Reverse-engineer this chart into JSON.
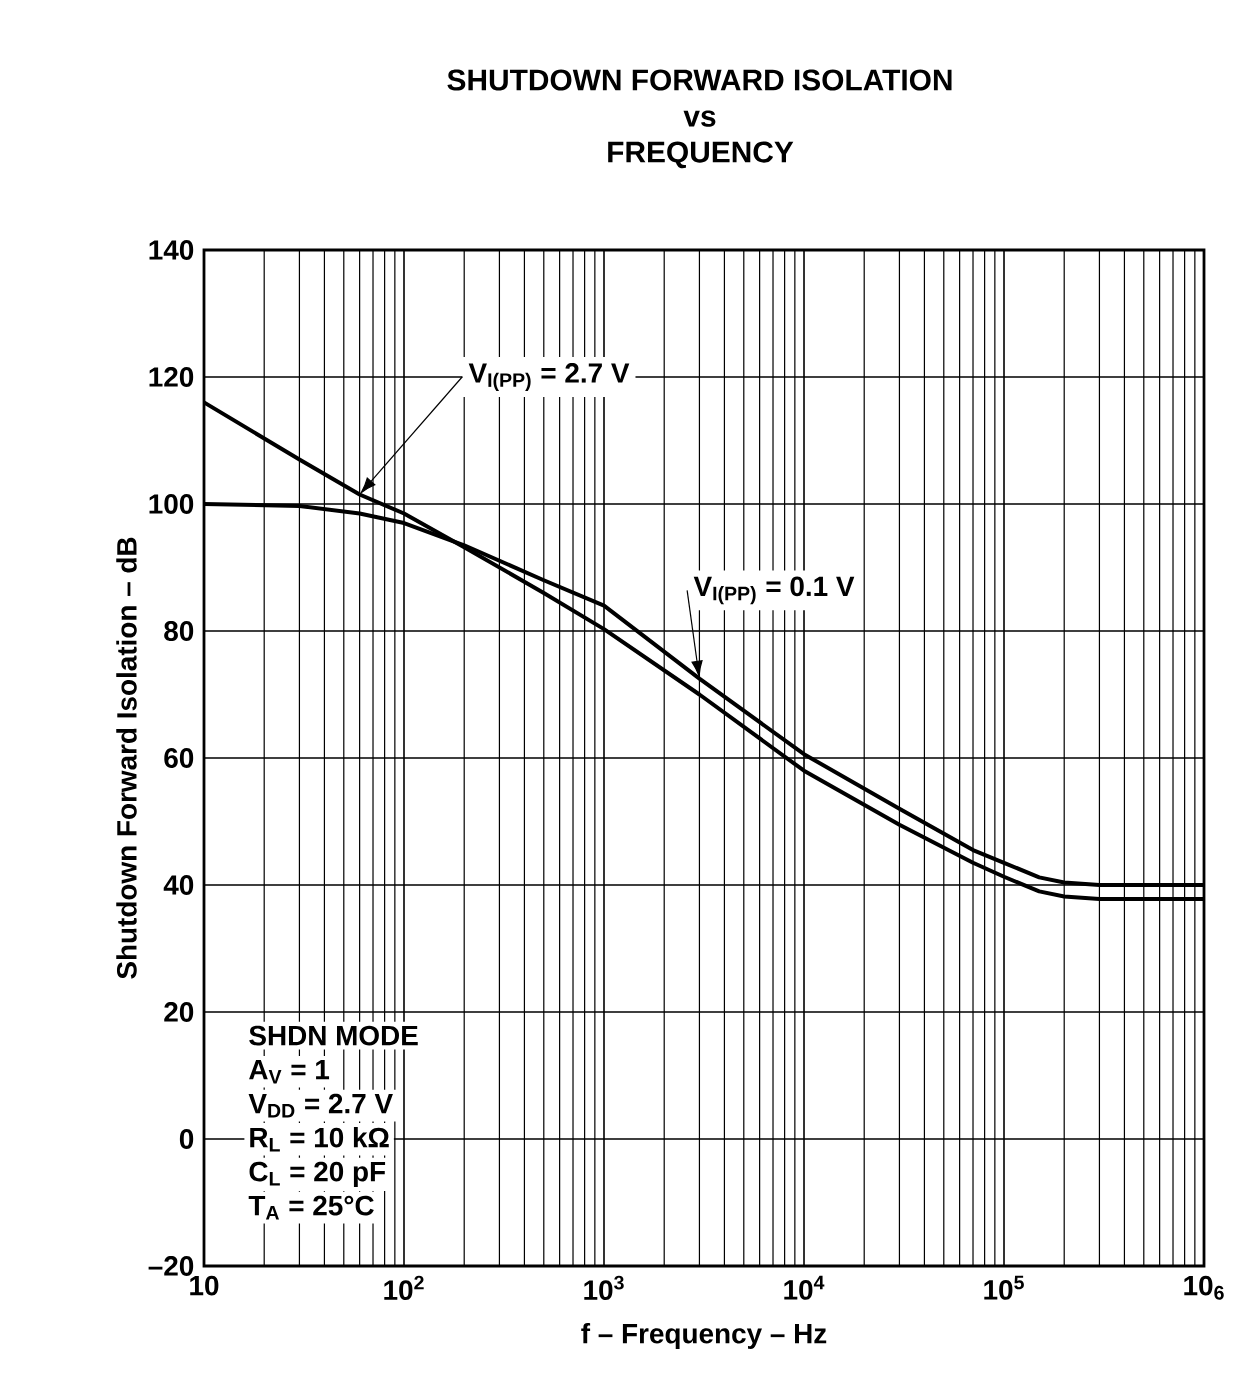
{
  "chart_data": {
    "type": "line",
    "title": "SHUTDOWN FORWARD ISOLATION",
    "subtitle": "vs FREQUENCY",
    "xlabel": "f – Frequency – Hz",
    "ylabel": "Shutdown Forward Isolation – dB",
    "log": "x",
    "grid": true,
    "legend": false,
    "line_style": "solid",
    "marker": "none",
    "xlim": [
      10,
      1000000
    ],
    "ylim": [
      -20,
      140
    ],
    "xticks": [
      10,
      {
        "value": 100,
        "label": "10$^{2}$"
      },
      {
        "value": 1000,
        "label": "10$^{3}$"
      },
      {
        "value": 10000,
        "label": "10$^{4}$"
      },
      {
        "value": 100000,
        "label": "10$^{5}$"
      },
      {
        "value": 1000000,
        "label": "10$_{6}$"
      }
    ],
    "yticks": [
      {
        "value": -20,
        "label": "–20"
      },
      0,
      20,
      40,
      60,
      80,
      100,
      120,
      140
    ],
    "annotations": [
      "SHDN MODE",
      "A$_{V}$ = 1",
      "V$_{DD}$ = 2.7 V",
      "R$_{L}$ = 10 kΩ",
      "C$_{L}$ = 20 pF",
      "T$_{A}$ = 25°C"
    ],
    "series": [
      {
        "name": "V$_{I(PP)}$ = 2.7 V",
        "color": "#000000",
        "x": [
          10,
          30,
          60,
          100,
          200,
          500,
          1000,
          3000,
          10000,
          30000,
          70000,
          100000,
          150000,
          200000,
          300000,
          1000000
        ],
        "values": [
          116,
          107,
          101.5,
          98.5,
          93.2,
          86,
          80.3,
          70,
          58,
          49.5,
          43.5,
          41.3,
          39,
          38.2,
          37.8,
          37.8
        ]
      },
      {
        "name": "V$_{I(PP)}$ = 0.1 V",
        "color": "#000000",
        "x": [
          10,
          30,
          60,
          100,
          200,
          500,
          1000,
          3000,
          10000,
          30000,
          70000,
          100000,
          150000,
          200000,
          300000,
          1000000
        ],
        "values": [
          100,
          99.7,
          98.5,
          97,
          93.5,
          88,
          84,
          72.5,
          60.6,
          52,
          45.5,
          43.5,
          41.2,
          40.4,
          40,
          40
        ]
      }
    ]
  }
}
